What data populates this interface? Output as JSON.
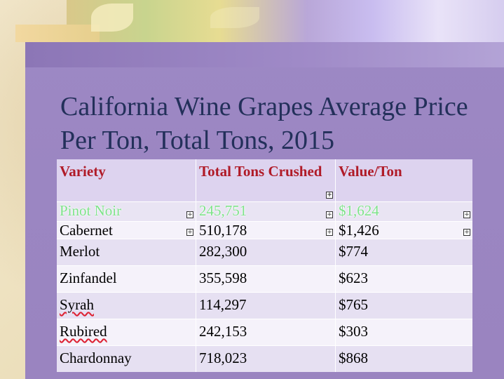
{
  "title": "California Wine Grapes Average Price Per Ton, Total Tons, 2015",
  "table": {
    "headers": [
      "Variety",
      "Total Tons Crushed",
      "Value/Ton"
    ],
    "rows": [
      [
        "Pinot Noir",
        "245,751",
        "$1,624"
      ],
      [
        "Cabernet",
        "510,178",
        "$1,426"
      ],
      [
        "Merlot",
        "282,300",
        "$774"
      ],
      [
        "Zinfandel",
        "355,598",
        "$623"
      ],
      [
        "Syrah",
        "114,297",
        "$765"
      ],
      [
        "Rubired",
        "242,153",
        "$303"
      ],
      [
        "Chardonnay",
        "718,023",
        "$868"
      ]
    ]
  },
  "colors": {
    "header_text": "#b01b28",
    "highlight_text": "#7ee38a",
    "title": "#23305a",
    "slide": "#9d88c4"
  }
}
